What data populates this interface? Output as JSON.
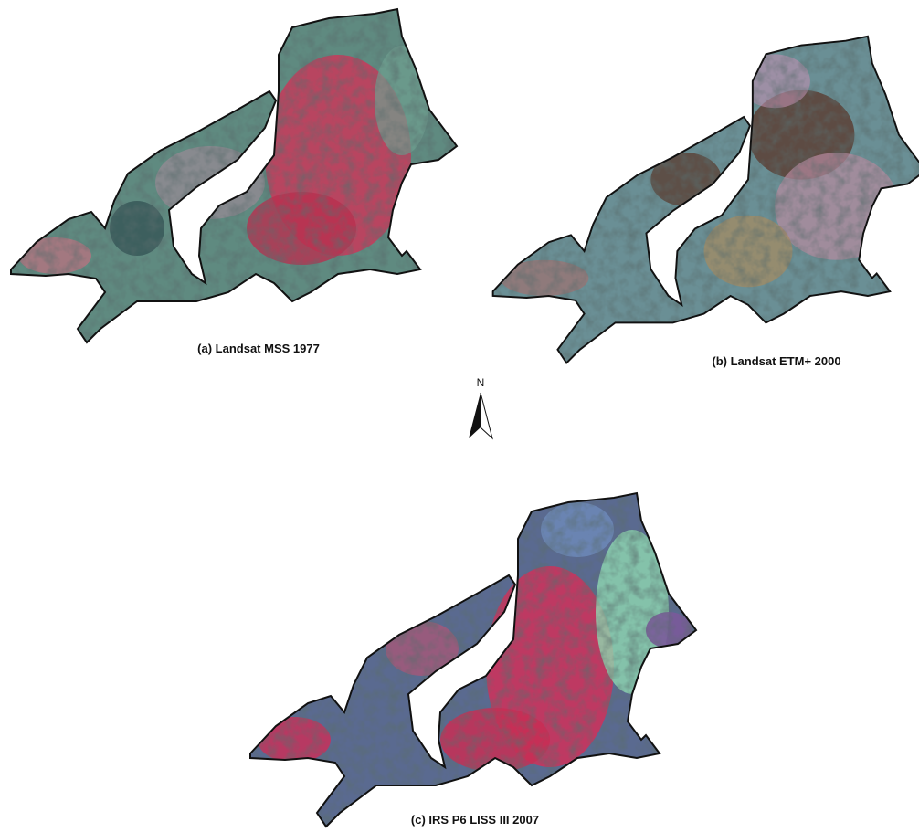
{
  "panels": [
    {
      "label": "(a) Landsat MSS 1977"
    },
    {
      "label": "(b) Landsat ETM+ 2000"
    },
    {
      "label": "(c) IRS P6 LISS III 2007"
    }
  ],
  "north_arrow": {
    "label": "N"
  }
}
